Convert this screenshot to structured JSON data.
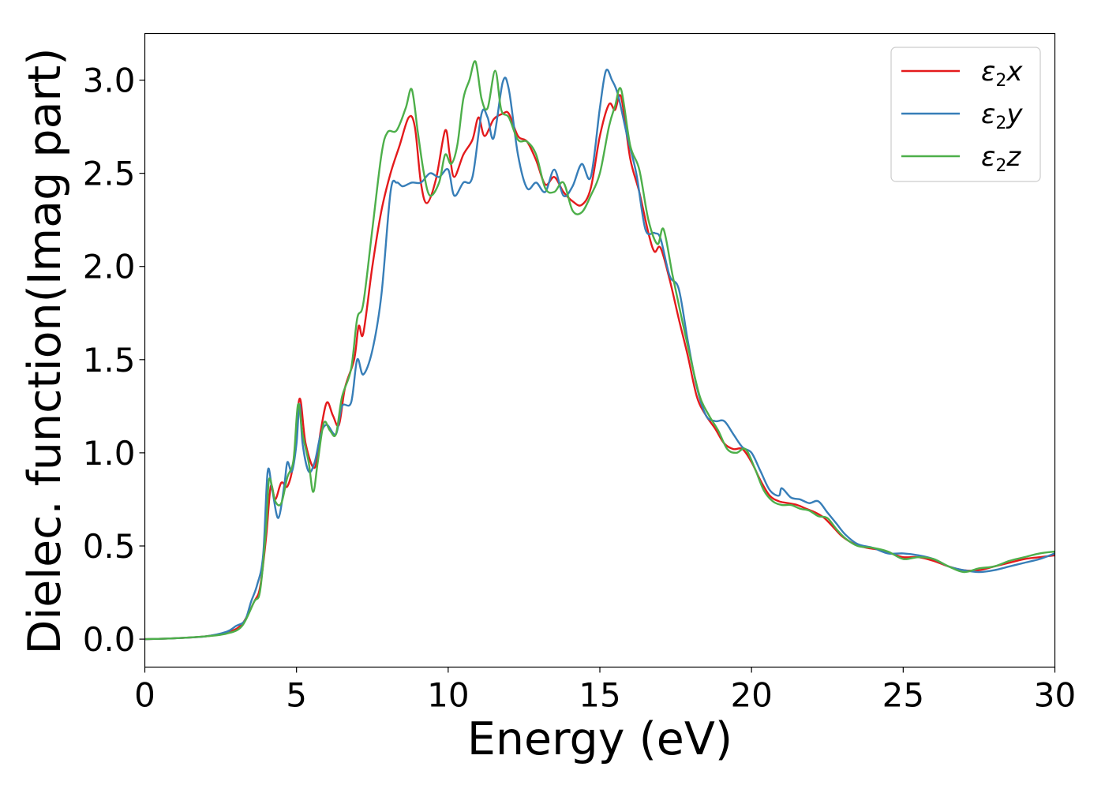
{
  "chart_data": {
    "type": "line",
    "xlabel": "Energy (eV)",
    "ylabel": "Dielec. function(Imag part)",
    "xlim": [
      0,
      30
    ],
    "ylim": [
      -0.15,
      3.25
    ],
    "xticks": [
      0,
      5,
      10,
      15,
      20,
      25,
      30
    ],
    "yticks": [
      0.0,
      0.5,
      1.0,
      1.5,
      2.0,
      2.5,
      3.0
    ],
    "xtick_labels": [
      "0",
      "5",
      "10",
      "15",
      "20",
      "25",
      "30"
    ],
    "ytick_labels": [
      "0.0",
      "0.5",
      "1.0",
      "1.5",
      "2.0",
      "2.5",
      "3.0"
    ],
    "grid": false,
    "legend_position": "top-right",
    "series": [
      {
        "name": "ε2x",
        "legend_main": "ε",
        "legend_sub": "2",
        "legend_var": "x",
        "color": "#e41a1c",
        "points": [
          [
            0,
            0
          ],
          [
            1,
            0.005
          ],
          [
            2,
            0.015
          ],
          [
            2.7,
            0.035
          ],
          [
            3.2,
            0.08
          ],
          [
            3.6,
            0.2
          ],
          [
            3.8,
            0.28
          ],
          [
            4.0,
            0.55
          ],
          [
            4.15,
            0.82
          ],
          [
            4.3,
            0.75
          ],
          [
            4.5,
            0.84
          ],
          [
            4.7,
            0.82
          ],
          [
            4.9,
            0.95
          ],
          [
            5.1,
            1.29
          ],
          [
            5.3,
            1.05
          ],
          [
            5.6,
            0.92
          ],
          [
            5.8,
            1.12
          ],
          [
            6.0,
            1.27
          ],
          [
            6.2,
            1.2
          ],
          [
            6.4,
            1.15
          ],
          [
            6.6,
            1.35
          ],
          [
            6.9,
            1.5
          ],
          [
            7.05,
            1.68
          ],
          [
            7.2,
            1.64
          ],
          [
            7.5,
            2.0
          ],
          [
            7.8,
            2.3
          ],
          [
            8.1,
            2.5
          ],
          [
            8.4,
            2.65
          ],
          [
            8.7,
            2.8
          ],
          [
            8.9,
            2.75
          ],
          [
            9.1,
            2.45
          ],
          [
            9.3,
            2.34
          ],
          [
            9.6,
            2.47
          ],
          [
            9.9,
            2.73
          ],
          [
            10.05,
            2.6
          ],
          [
            10.2,
            2.48
          ],
          [
            10.5,
            2.6
          ],
          [
            10.8,
            2.68
          ],
          [
            11.0,
            2.8
          ],
          [
            11.2,
            2.7
          ],
          [
            11.5,
            2.79
          ],
          [
            11.8,
            2.82
          ],
          [
            12.0,
            2.82
          ],
          [
            12.3,
            2.7
          ],
          [
            12.6,
            2.67
          ],
          [
            12.9,
            2.57
          ],
          [
            13.2,
            2.44
          ],
          [
            13.5,
            2.48
          ],
          [
            13.8,
            2.4
          ],
          [
            14.1,
            2.35
          ],
          [
            14.4,
            2.33
          ],
          [
            14.7,
            2.42
          ],
          [
            15.0,
            2.7
          ],
          [
            15.3,
            2.87
          ],
          [
            15.5,
            2.84
          ],
          [
            15.7,
            2.91
          ],
          [
            16.0,
            2.58
          ],
          [
            16.3,
            2.4
          ],
          [
            16.6,
            2.18
          ],
          [
            16.8,
            2.08
          ],
          [
            17.0,
            2.1
          ],
          [
            17.3,
            1.93
          ],
          [
            17.6,
            1.72
          ],
          [
            17.9,
            1.52
          ],
          [
            18.2,
            1.3
          ],
          [
            18.5,
            1.2
          ],
          [
            18.8,
            1.13
          ],
          [
            19.1,
            1.05
          ],
          [
            19.4,
            1.02
          ],
          [
            19.7,
            1.02
          ],
          [
            20.0,
            0.95
          ],
          [
            20.3,
            0.85
          ],
          [
            20.6,
            0.77
          ],
          [
            20.9,
            0.74
          ],
          [
            21.2,
            0.73
          ],
          [
            21.5,
            0.72
          ],
          [
            21.8,
            0.7
          ],
          [
            22.1,
            0.68
          ],
          [
            22.4,
            0.65
          ],
          [
            22.7,
            0.6
          ],
          [
            23.0,
            0.55
          ],
          [
            23.4,
            0.51
          ],
          [
            23.8,
            0.49
          ],
          [
            24.2,
            0.48
          ],
          [
            24.6,
            0.46
          ],
          [
            25.0,
            0.44
          ],
          [
            25.5,
            0.44
          ],
          [
            26.0,
            0.42
          ],
          [
            26.5,
            0.39
          ],
          [
            27.0,
            0.37
          ],
          [
            27.5,
            0.37
          ],
          [
            28.0,
            0.39
          ],
          [
            28.5,
            0.41
          ],
          [
            29.0,
            0.43
          ],
          [
            29.5,
            0.44
          ],
          [
            30.0,
            0.45
          ]
        ]
      },
      {
        "name": "ε2y",
        "legend_main": "ε",
        "legend_sub": "2",
        "legend_var": "y",
        "color": "#377eb8",
        "points": [
          [
            0,
            0
          ],
          [
            1,
            0.005
          ],
          [
            2,
            0.015
          ],
          [
            2.7,
            0.04
          ],
          [
            3.0,
            0.07
          ],
          [
            3.3,
            0.1
          ],
          [
            3.5,
            0.2
          ],
          [
            3.7,
            0.29
          ],
          [
            3.9,
            0.45
          ],
          [
            4.05,
            0.9
          ],
          [
            4.2,
            0.8
          ],
          [
            4.4,
            0.65
          ],
          [
            4.6,
            0.83
          ],
          [
            4.7,
            0.95
          ],
          [
            4.85,
            0.9
          ],
          [
            5.0,
            1.05
          ],
          [
            5.1,
            1.26
          ],
          [
            5.2,
            1.05
          ],
          [
            5.4,
            0.9
          ],
          [
            5.6,
            0.95
          ],
          [
            5.8,
            1.1
          ],
          [
            6.0,
            1.15
          ],
          [
            6.3,
            1.1
          ],
          [
            6.5,
            1.25
          ],
          [
            6.8,
            1.27
          ],
          [
            7.0,
            1.5
          ],
          [
            7.2,
            1.42
          ],
          [
            7.5,
            1.55
          ],
          [
            7.8,
            1.85
          ],
          [
            8.1,
            2.4
          ],
          [
            8.3,
            2.45
          ],
          [
            8.5,
            2.43
          ],
          [
            8.8,
            2.45
          ],
          [
            9.1,
            2.45
          ],
          [
            9.4,
            2.5
          ],
          [
            9.7,
            2.48
          ],
          [
            10.0,
            2.52
          ],
          [
            10.2,
            2.38
          ],
          [
            10.5,
            2.45
          ],
          [
            10.8,
            2.48
          ],
          [
            11.1,
            2.82
          ],
          [
            11.3,
            2.8
          ],
          [
            11.5,
            2.69
          ],
          [
            11.8,
            2.99
          ],
          [
            12.0,
            2.95
          ],
          [
            12.3,
            2.6
          ],
          [
            12.6,
            2.42
          ],
          [
            12.9,
            2.45
          ],
          [
            13.2,
            2.4
          ],
          [
            13.5,
            2.52
          ],
          [
            13.8,
            2.38
          ],
          [
            14.1,
            2.43
          ],
          [
            14.4,
            2.55
          ],
          [
            14.7,
            2.48
          ],
          [
            15.0,
            2.85
          ],
          [
            15.2,
            3.05
          ],
          [
            15.4,
            3.0
          ],
          [
            15.6,
            2.92
          ],
          [
            15.9,
            2.7
          ],
          [
            16.2,
            2.5
          ],
          [
            16.5,
            2.2
          ],
          [
            16.8,
            2.18
          ],
          [
            17.0,
            2.15
          ],
          [
            17.3,
            1.95
          ],
          [
            17.6,
            1.88
          ],
          [
            17.9,
            1.6
          ],
          [
            18.2,
            1.35
          ],
          [
            18.5,
            1.2
          ],
          [
            18.8,
            1.17
          ],
          [
            19.1,
            1.17
          ],
          [
            19.4,
            1.1
          ],
          [
            19.7,
            1.03
          ],
          [
            20.0,
            1.0
          ],
          [
            20.3,
            0.9
          ],
          [
            20.6,
            0.8
          ],
          [
            20.9,
            0.77
          ],
          [
            21.0,
            0.81
          ],
          [
            21.3,
            0.76
          ],
          [
            21.6,
            0.75
          ],
          [
            21.9,
            0.73
          ],
          [
            22.2,
            0.74
          ],
          [
            22.5,
            0.68
          ],
          [
            22.8,
            0.62
          ],
          [
            23.1,
            0.56
          ],
          [
            23.5,
            0.51
          ],
          [
            24.0,
            0.49
          ],
          [
            24.5,
            0.46
          ],
          [
            25.0,
            0.46
          ],
          [
            25.5,
            0.45
          ],
          [
            26.0,
            0.43
          ],
          [
            26.5,
            0.39
          ],
          [
            27.0,
            0.37
          ],
          [
            27.5,
            0.36
          ],
          [
            28.0,
            0.37
          ],
          [
            28.5,
            0.39
          ],
          [
            29.0,
            0.41
          ],
          [
            29.5,
            0.43
          ],
          [
            30.0,
            0.46
          ]
        ]
      },
      {
        "name": "ε2z",
        "legend_main": "ε",
        "legend_sub": "2",
        "legend_var": "z",
        "color": "#4daf4a",
        "points": [
          [
            0,
            0
          ],
          [
            1,
            0.005
          ],
          [
            2,
            0.015
          ],
          [
            2.7,
            0.03
          ],
          [
            3.2,
            0.07
          ],
          [
            3.6,
            0.2
          ],
          [
            3.8,
            0.26
          ],
          [
            4.0,
            0.6
          ],
          [
            4.1,
            0.86
          ],
          [
            4.3,
            0.74
          ],
          [
            4.5,
            0.73
          ],
          [
            4.7,
            0.87
          ],
          [
            4.9,
            0.96
          ],
          [
            5.05,
            1.26
          ],
          [
            5.2,
            1.1
          ],
          [
            5.4,
            0.95
          ],
          [
            5.55,
            0.79
          ],
          [
            5.7,
            0.95
          ],
          [
            5.9,
            1.16
          ],
          [
            6.1,
            1.12
          ],
          [
            6.3,
            1.1
          ],
          [
            6.5,
            1.3
          ],
          [
            6.8,
            1.45
          ],
          [
            7.0,
            1.72
          ],
          [
            7.2,
            1.8
          ],
          [
            7.5,
            2.2
          ],
          [
            7.8,
            2.6
          ],
          [
            8.0,
            2.72
          ],
          [
            8.3,
            2.73
          ],
          [
            8.6,
            2.85
          ],
          [
            8.8,
            2.95
          ],
          [
            9.0,
            2.72
          ],
          [
            9.2,
            2.5
          ],
          [
            9.4,
            2.38
          ],
          [
            9.7,
            2.45
          ],
          [
            9.9,
            2.6
          ],
          [
            10.1,
            2.55
          ],
          [
            10.3,
            2.65
          ],
          [
            10.5,
            2.9
          ],
          [
            10.7,
            3.0
          ],
          [
            10.9,
            3.1
          ],
          [
            11.1,
            2.9
          ],
          [
            11.3,
            2.85
          ],
          [
            11.55,
            3.05
          ],
          [
            11.75,
            2.84
          ],
          [
            12.0,
            2.8
          ],
          [
            12.3,
            2.68
          ],
          [
            12.6,
            2.67
          ],
          [
            12.9,
            2.6
          ],
          [
            13.2,
            2.42
          ],
          [
            13.5,
            2.4
          ],
          [
            13.8,
            2.45
          ],
          [
            14.1,
            2.3
          ],
          [
            14.4,
            2.29
          ],
          [
            14.7,
            2.38
          ],
          [
            15.0,
            2.5
          ],
          [
            15.3,
            2.75
          ],
          [
            15.5,
            2.86
          ],
          [
            15.7,
            2.95
          ],
          [
            16.0,
            2.65
          ],
          [
            16.3,
            2.52
          ],
          [
            16.6,
            2.25
          ],
          [
            16.9,
            2.12
          ],
          [
            17.1,
            2.2
          ],
          [
            17.4,
            1.95
          ],
          [
            17.7,
            1.72
          ],
          [
            18.0,
            1.5
          ],
          [
            18.3,
            1.3
          ],
          [
            18.6,
            1.2
          ],
          [
            18.9,
            1.12
          ],
          [
            19.2,
            1.02
          ],
          [
            19.5,
            1.0
          ],
          [
            19.8,
            1.02
          ],
          [
            20.1,
            0.92
          ],
          [
            20.4,
            0.8
          ],
          [
            20.7,
            0.74
          ],
          [
            21.0,
            0.72
          ],
          [
            21.3,
            0.72
          ],
          [
            21.6,
            0.7
          ],
          [
            21.9,
            0.69
          ],
          [
            22.2,
            0.66
          ],
          [
            22.5,
            0.65
          ],
          [
            22.8,
            0.59
          ],
          [
            23.1,
            0.54
          ],
          [
            23.5,
            0.5
          ],
          [
            24.0,
            0.49
          ],
          [
            24.5,
            0.47
          ],
          [
            25.0,
            0.43
          ],
          [
            25.5,
            0.44
          ],
          [
            26.0,
            0.43
          ],
          [
            26.5,
            0.39
          ],
          [
            27.0,
            0.36
          ],
          [
            27.5,
            0.38
          ],
          [
            28.0,
            0.39
          ],
          [
            28.5,
            0.42
          ],
          [
            29.0,
            0.44
          ],
          [
            29.5,
            0.46
          ],
          [
            30.0,
            0.47
          ]
        ]
      }
    ]
  }
}
